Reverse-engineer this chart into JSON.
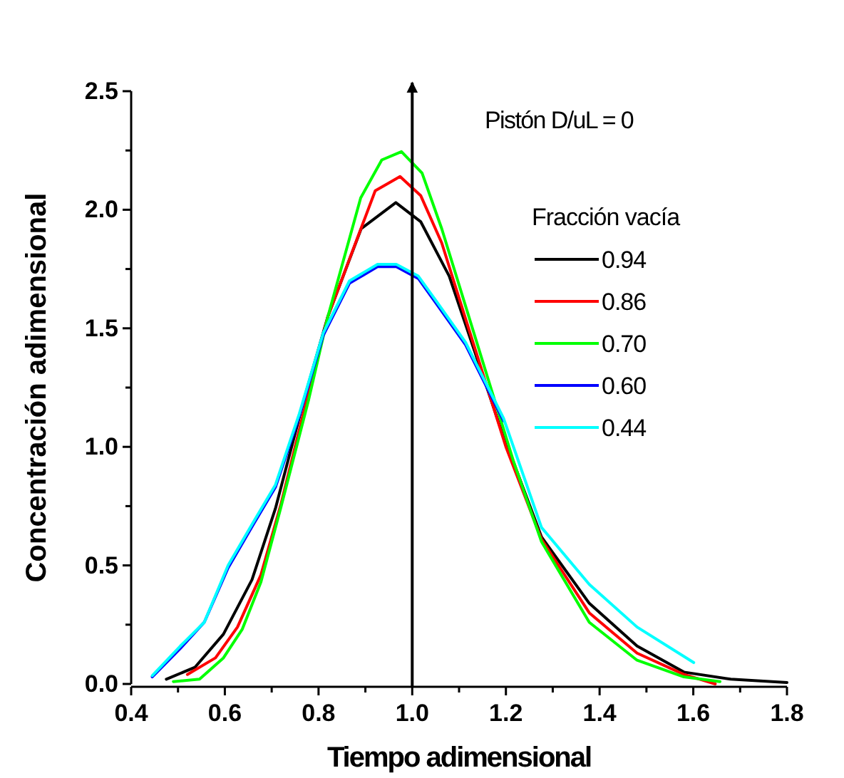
{
  "chart_data": {
    "type": "line",
    "xlabel": "Tiempo adimensional",
    "ylabel": "Concentración adimensional",
    "legend_title": "Fracción vacía",
    "legend": "top right",
    "grid": false,
    "marker": "none",
    "line_style": "solid",
    "xlim": [
      0.4,
      1.8
    ],
    "ylim": [
      0,
      2.5
    ],
    "xticks": [
      0.4,
      {
        "value": 0.5,
        "label": null
      },
      0.6,
      {
        "value": 0.7,
        "label": null
      },
      0.8,
      {
        "value": 0.9,
        "label": null
      },
      {
        "value": 1,
        "label": "1.0"
      },
      {
        "value": 1.1,
        "label": null
      },
      1.2,
      {
        "value": 1.3,
        "label": null
      },
      1.4,
      {
        "value": 1.5,
        "label": null
      },
      1.6,
      {
        "value": 1.7,
        "label": null
      },
      1.8
    ],
    "yticks": [
      {
        "value": 0,
        "label": "0.0"
      },
      {
        "value": 0.25,
        "label": null
      },
      0.5,
      {
        "value": 0.75,
        "label": null
      },
      {
        "value": 1,
        "label": "1.0"
      },
      {
        "value": 1.25,
        "label": null
      },
      1.5,
      {
        "value": 1.75,
        "label": null
      },
      {
        "value": 2,
        "label": "2.0"
      },
      {
        "value": 2.25,
        "label": null
      },
      2.5
    ],
    "ref_lines": [
      {
        "axis": "x",
        "value": 1.0,
        "color": "#000000",
        "line_style": "solid"
      }
    ],
    "annotations": [
      "Pistón D/uL = 0"
    ],
    "series": [
      {
        "name": "0.94",
        "color": "#000000",
        "x": [
          0.475,
          0.536,
          0.597,
          0.658,
          0.708,
          0.769,
          0.82,
          0.891,
          0.965,
          1.018,
          1.079,
          1.185,
          1.276,
          1.378,
          1.48,
          1.58,
          1.68,
          1.8
        ],
        "values": [
          0.02,
          0.07,
          0.21,
          0.44,
          0.74,
          1.2,
          1.55,
          1.92,
          2.03,
          1.95,
          1.72,
          1.1,
          0.62,
          0.34,
          0.16,
          0.05,
          0.02,
          0.006
        ]
      },
      {
        "name": "0.86",
        "color": "#ff0000",
        "x": [
          0.52,
          0.58,
          0.627,
          0.677,
          0.72,
          0.775,
          0.82,
          0.921,
          0.974,
          1.018,
          1.063,
          1.2,
          1.276,
          1.378,
          1.48,
          1.58,
          1.647
        ],
        "values": [
          0.04,
          0.11,
          0.24,
          0.46,
          0.76,
          1.2,
          1.55,
          2.08,
          2.14,
          2.06,
          1.86,
          1.0,
          0.61,
          0.3,
          0.13,
          0.04,
          0.0
        ]
      },
      {
        "name": "0.70",
        "color": "#00ff00",
        "x": [
          0.49,
          0.546,
          0.597,
          0.637,
          0.677,
          0.719,
          0.779,
          0.82,
          0.89,
          0.935,
          0.977,
          1.021,
          1.063,
          1.216,
          1.276,
          1.378,
          1.48,
          1.58,
          1.657
        ],
        "values": [
          0.01,
          0.02,
          0.11,
          0.23,
          0.43,
          0.74,
          1.2,
          1.55,
          2.05,
          2.21,
          2.245,
          2.155,
          1.92,
          0.94,
          0.6,
          0.26,
          0.1,
          0.03,
          0.01
        ]
      },
      {
        "name": "0.60",
        "color": "#0000ff",
        "x": [
          0.445,
          0.505,
          0.556,
          0.607,
          0.66,
          0.708,
          0.759,
          0.81,
          0.866,
          0.926,
          0.966,
          1.013,
          1.053,
          1.114,
          1.195
        ],
        "values": [
          0.03,
          0.15,
          0.26,
          0.49,
          0.67,
          0.83,
          1.13,
          1.47,
          1.69,
          1.76,
          1.76,
          1.71,
          1.6,
          1.43,
          1.11
        ]
      },
      {
        "name": "0.44",
        "color": "#00ffff",
        "x": [
          0.445,
          0.505,
          0.556,
          0.607,
          0.66,
          0.708,
          0.759,
          0.81,
          0.866,
          0.926,
          0.966,
          1.013,
          1.053,
          1.114,
          1.195,
          1.276,
          1.378,
          1.48,
          1.601
        ],
        "values": [
          0.035,
          0.16,
          0.26,
          0.5,
          0.68,
          0.84,
          1.14,
          1.48,
          1.7,
          1.77,
          1.77,
          1.72,
          1.61,
          1.44,
          1.12,
          0.66,
          0.42,
          0.24,
          0.09
        ]
      }
    ]
  }
}
